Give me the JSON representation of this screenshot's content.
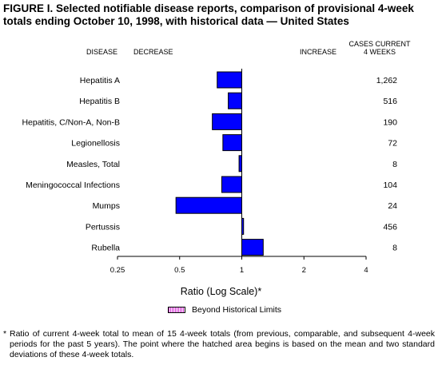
{
  "figure": {
    "title": "FIGURE I. Selected notifiable disease reports, comparison of provisional 4-week totals ending October 10, 1998, with historical data — United States",
    "header_disease": "DISEASE",
    "header_decrease": "DECREASE",
    "header_increase": "INCREASE",
    "header_cases_line1": "CASES CURRENT",
    "header_cases_line2": "4 WEEKS",
    "axis_title": "Ratio (Log Scale)*",
    "legend_label": "Beyond Historical Limits",
    "footnote_mark": "*",
    "footnote": "Ratio of current 4-week total to mean of 15 4-week totals (from previous, comparable, and subsequent 4-week periods for the past 5 years). The point where the hatched area begins is based on the mean and two standard deviations of these 4-week totals."
  },
  "colors": {
    "bar": "#0000ff",
    "legend_hatch": "#d633d6"
  },
  "chart_data": {
    "type": "bar",
    "orientation": "horizontal",
    "x_scale": "log2",
    "xlim": [
      0.25,
      4
    ],
    "baseline": 1,
    "x_ticks": [
      "0.25",
      "0.5",
      "1",
      "2",
      "4"
    ],
    "xlabel": "Ratio (Log Scale)*",
    "categories": [
      "Hepatitis A",
      "Hepatitis B",
      "Hepatitis, C/Non-A, Non-B",
      "Legionellosis",
      "Measles, Total",
      "Meningococcal Infections",
      "Mumps",
      "Pertussis",
      "Rubella"
    ],
    "values": [
      0.76,
      0.86,
      0.72,
      0.81,
      0.97,
      0.8,
      0.48,
      1.02,
      1.27
    ],
    "cases_current_4_weeks": [
      "1,262",
      "516",
      "190",
      "72",
      "8",
      "104",
      "24",
      "456",
      "8"
    ],
    "beyond_historical_limits": [
      false,
      false,
      false,
      false,
      false,
      false,
      false,
      false,
      false
    ],
    "legend": [
      "Beyond Historical Limits"
    ]
  }
}
